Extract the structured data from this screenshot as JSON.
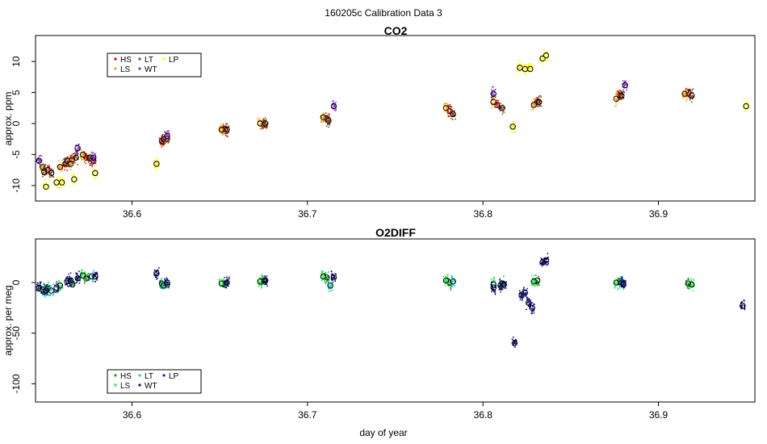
{
  "figure_title": "160205c   Calibration Data 3",
  "xlabel": "day of year",
  "chart_data": [
    {
      "type": "scatter",
      "title": "CO2",
      "xlabel": "",
      "ylabel": "approx. ppm",
      "xlim": [
        36.545,
        36.955
      ],
      "ylim": [
        -12.5,
        14.2
      ],
      "xticks": [
        36.6,
        36.7,
        36.8,
        36.9
      ],
      "yticks": [
        -10,
        -5,
        0,
        5,
        10
      ],
      "legend": {
        "placement": "top-left",
        "entries": [
          {
            "name": "HS",
            "color": "#e00000"
          },
          {
            "name": "LS",
            "color": "#f4a300"
          },
          {
            "name": "LT",
            "color": "#7a4a1a"
          },
          {
            "name": "WT",
            "color": "#8a2be2"
          },
          {
            "name": "LP",
            "color": "#ffff00"
          }
        ]
      },
      "series": [
        {
          "name": "HS",
          "color": "#e00000",
          "points": [
            [
              36.552,
              -7.5
            ],
            [
              36.562,
              -6.5
            ],
            [
              36.566,
              -5.8
            ],
            [
              36.574,
              -5.5
            ],
            [
              36.578,
              -6.0
            ],
            [
              36.617,
              -2.8
            ],
            [
              36.653,
              -0.8
            ],
            [
              36.675,
              -0.2
            ],
            [
              36.711,
              0.8
            ],
            [
              36.781,
              2.0
            ],
            [
              36.808,
              3.0
            ],
            [
              36.831,
              3.5
            ],
            [
              36.878,
              4.5
            ],
            [
              36.917,
              5.0
            ]
          ]
        },
        {
          "name": "LS",
          "color": "#f4a300",
          "points": [
            [
              36.549,
              -7.0
            ],
            [
              36.559,
              -7.0
            ],
            [
              36.565,
              -6.5
            ],
            [
              36.572,
              -5.0
            ],
            [
              36.62,
              -2.5
            ],
            [
              36.651,
              -1.0
            ],
            [
              36.673,
              0.0
            ],
            [
              36.709,
              1.0
            ],
            [
              36.779,
              2.5
            ],
            [
              36.806,
              3.5
            ],
            [
              36.829,
              3.0
            ],
            [
              36.876,
              4.0
            ],
            [
              36.915,
              4.8
            ]
          ]
        },
        {
          "name": "LT",
          "color": "#7a4a1a",
          "points": [
            [
              36.55,
              -7.8
            ],
            [
              36.554,
              -8.0
            ],
            [
              36.563,
              -6.0
            ],
            [
              36.568,
              -5.5
            ],
            [
              36.576,
              -5.5
            ],
            [
              36.618,
              -2.5
            ],
            [
              36.654,
              -1.0
            ],
            [
              36.676,
              0.0
            ],
            [
              36.712,
              0.5
            ],
            [
              36.783,
              1.5
            ],
            [
              36.811,
              2.5
            ],
            [
              36.832,
              3.5
            ],
            [
              36.879,
              4.5
            ],
            [
              36.919,
              4.5
            ]
          ]
        },
        {
          "name": "WT",
          "color": "#8a2be2",
          "points": [
            [
              36.547,
              -6.0
            ],
            [
              36.569,
              -4.0
            ],
            [
              36.578,
              -5.5
            ],
            [
              36.62,
              -2.0
            ],
            [
              36.715,
              2.8
            ],
            [
              36.806,
              4.8
            ],
            [
              36.881,
              6.2
            ]
          ]
        },
        {
          "name": "LP",
          "color": "#ffff00",
          "points": [
            [
              36.551,
              -10.2
            ],
            [
              36.557,
              -9.5
            ],
            [
              36.56,
              -9.5
            ],
            [
              36.567,
              -9.0
            ],
            [
              36.579,
              -8.0
            ],
            [
              36.614,
              -6.5
            ],
            [
              36.817,
              -0.5
            ],
            [
              36.821,
              9.0
            ],
            [
              36.824,
              8.8
            ],
            [
              36.827,
              8.8
            ],
            [
              36.834,
              10.5
            ],
            [
              36.836,
              11.0
            ],
            [
              36.95,
              2.8
            ]
          ]
        }
      ]
    },
    {
      "type": "scatter",
      "title": "O2DIFF",
      "xlabel": "day of year",
      "ylabel": "approx. per meg",
      "xlim": [
        36.545,
        36.955
      ],
      "ylim": [
        -118,
        43
      ],
      "xticks": [
        36.6,
        36.7,
        36.8,
        36.9
      ],
      "yticks": [
        -100,
        -50,
        0
      ],
      "legend": {
        "placement": "bottom-left",
        "entries": [
          {
            "name": "HS",
            "color": "#1a9e1a"
          },
          {
            "name": "LS",
            "color": "#22ee44"
          },
          {
            "name": "LT",
            "color": "#22cccc"
          },
          {
            "name": "WT",
            "color": "#0a0a80"
          },
          {
            "name": "LP",
            "color": "#1a1a9a"
          }
        ]
      },
      "series": [
        {
          "name": "HS",
          "color": "#1a9e1a",
          "points": [
            [
              36.552,
              -6
            ],
            [
              36.566,
              -2
            ],
            [
              36.574,
              4
            ],
            [
              36.617,
              -1
            ],
            [
              36.653,
              -2
            ],
            [
              36.675,
              2
            ],
            [
              36.711,
              5
            ],
            [
              36.781,
              0
            ],
            [
              36.811,
              -1
            ],
            [
              36.831,
              2
            ],
            [
              36.878,
              1
            ],
            [
              36.917,
              -1
            ]
          ]
        },
        {
          "name": "LS",
          "color": "#22ee44",
          "points": [
            [
              36.549,
              -7
            ],
            [
              36.559,
              -3
            ],
            [
              36.572,
              7
            ],
            [
              36.62,
              -2
            ],
            [
              36.651,
              -1
            ],
            [
              36.673,
              1
            ],
            [
              36.709,
              6
            ],
            [
              36.779,
              2
            ],
            [
              36.806,
              -2
            ],
            [
              36.829,
              1
            ],
            [
              36.876,
              0
            ],
            [
              36.919,
              -2
            ]
          ]
        },
        {
          "name": "LT",
          "color": "#22cccc",
          "points": [
            [
              36.55,
              -9
            ],
            [
              36.554,
              -8
            ],
            [
              36.577,
              6
            ],
            [
              36.618,
              -3
            ],
            [
              36.713,
              -3
            ],
            [
              36.783,
              1
            ],
            [
              36.879,
              0
            ]
          ]
        },
        {
          "name": "WT",
          "color": "#0a0a80",
          "points": [
            [
              36.547,
              -5
            ],
            [
              36.563,
              1
            ],
            [
              36.569,
              4
            ],
            [
              36.579,
              6
            ],
            [
              36.614,
              9
            ],
            [
              36.654,
              0
            ],
            [
              36.676,
              2
            ],
            [
              36.715,
              5
            ],
            [
              36.806,
              -5
            ],
            [
              36.81,
              -3
            ],
            [
              36.818,
              -60
            ],
            [
              36.822,
              -12
            ],
            [
              36.826,
              -20
            ],
            [
              36.834,
              20
            ],
            [
              36.836,
              22
            ],
            [
              36.88,
              -1
            ],
            [
              36.948,
              -23
            ]
          ]
        },
        {
          "name": "LP",
          "color": "#1a1a9a",
          "points": [
            [
              36.551,
              -8
            ],
            [
              36.557,
              -5
            ],
            [
              36.565,
              2
            ],
            [
              36.62,
              0
            ],
            [
              36.812,
              -2
            ],
            [
              36.824,
              -10
            ],
            [
              36.828,
              -25
            ],
            [
              36.88,
              -2
            ]
          ]
        }
      ]
    }
  ]
}
